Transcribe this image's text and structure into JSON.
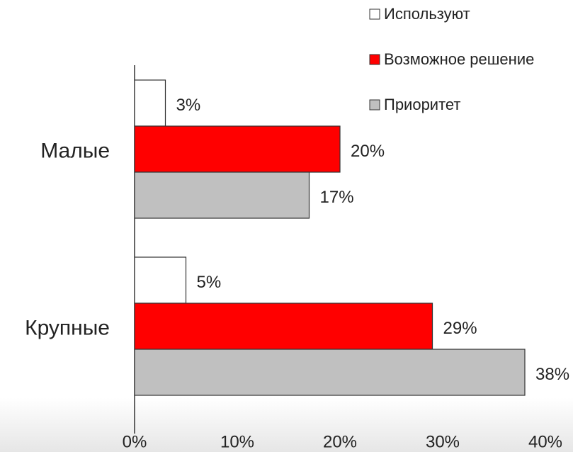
{
  "chart_data": {
    "type": "bar",
    "orientation": "horizontal",
    "categories": [
      "Малые",
      "Крупные"
    ],
    "series": [
      {
        "name": "Используют",
        "color": "#ffffff",
        "values": [
          3,
          5
        ],
        "value_labels": [
          "3%",
          "5%"
        ]
      },
      {
        "name": "Возможное решение",
        "color": "#ff0000",
        "values": [
          20,
          29
        ],
        "value_labels": [
          "20%",
          "29%"
        ]
      },
      {
        "name": "Приоритет",
        "color": "#c0c0c0",
        "values": [
          17,
          38
        ],
        "value_labels": [
          "17%",
          "38%"
        ]
      }
    ],
    "xlim": [
      0,
      40
    ],
    "xticks": [
      {
        "value": 0,
        "label": "0%"
      },
      {
        "value": 10,
        "label": "10%"
      },
      {
        "value": 20,
        "label": "20%"
      },
      {
        "value": 30,
        "label": "30%"
      },
      {
        "value": 40,
        "label": "40%"
      }
    ],
    "legend": "top-right"
  }
}
